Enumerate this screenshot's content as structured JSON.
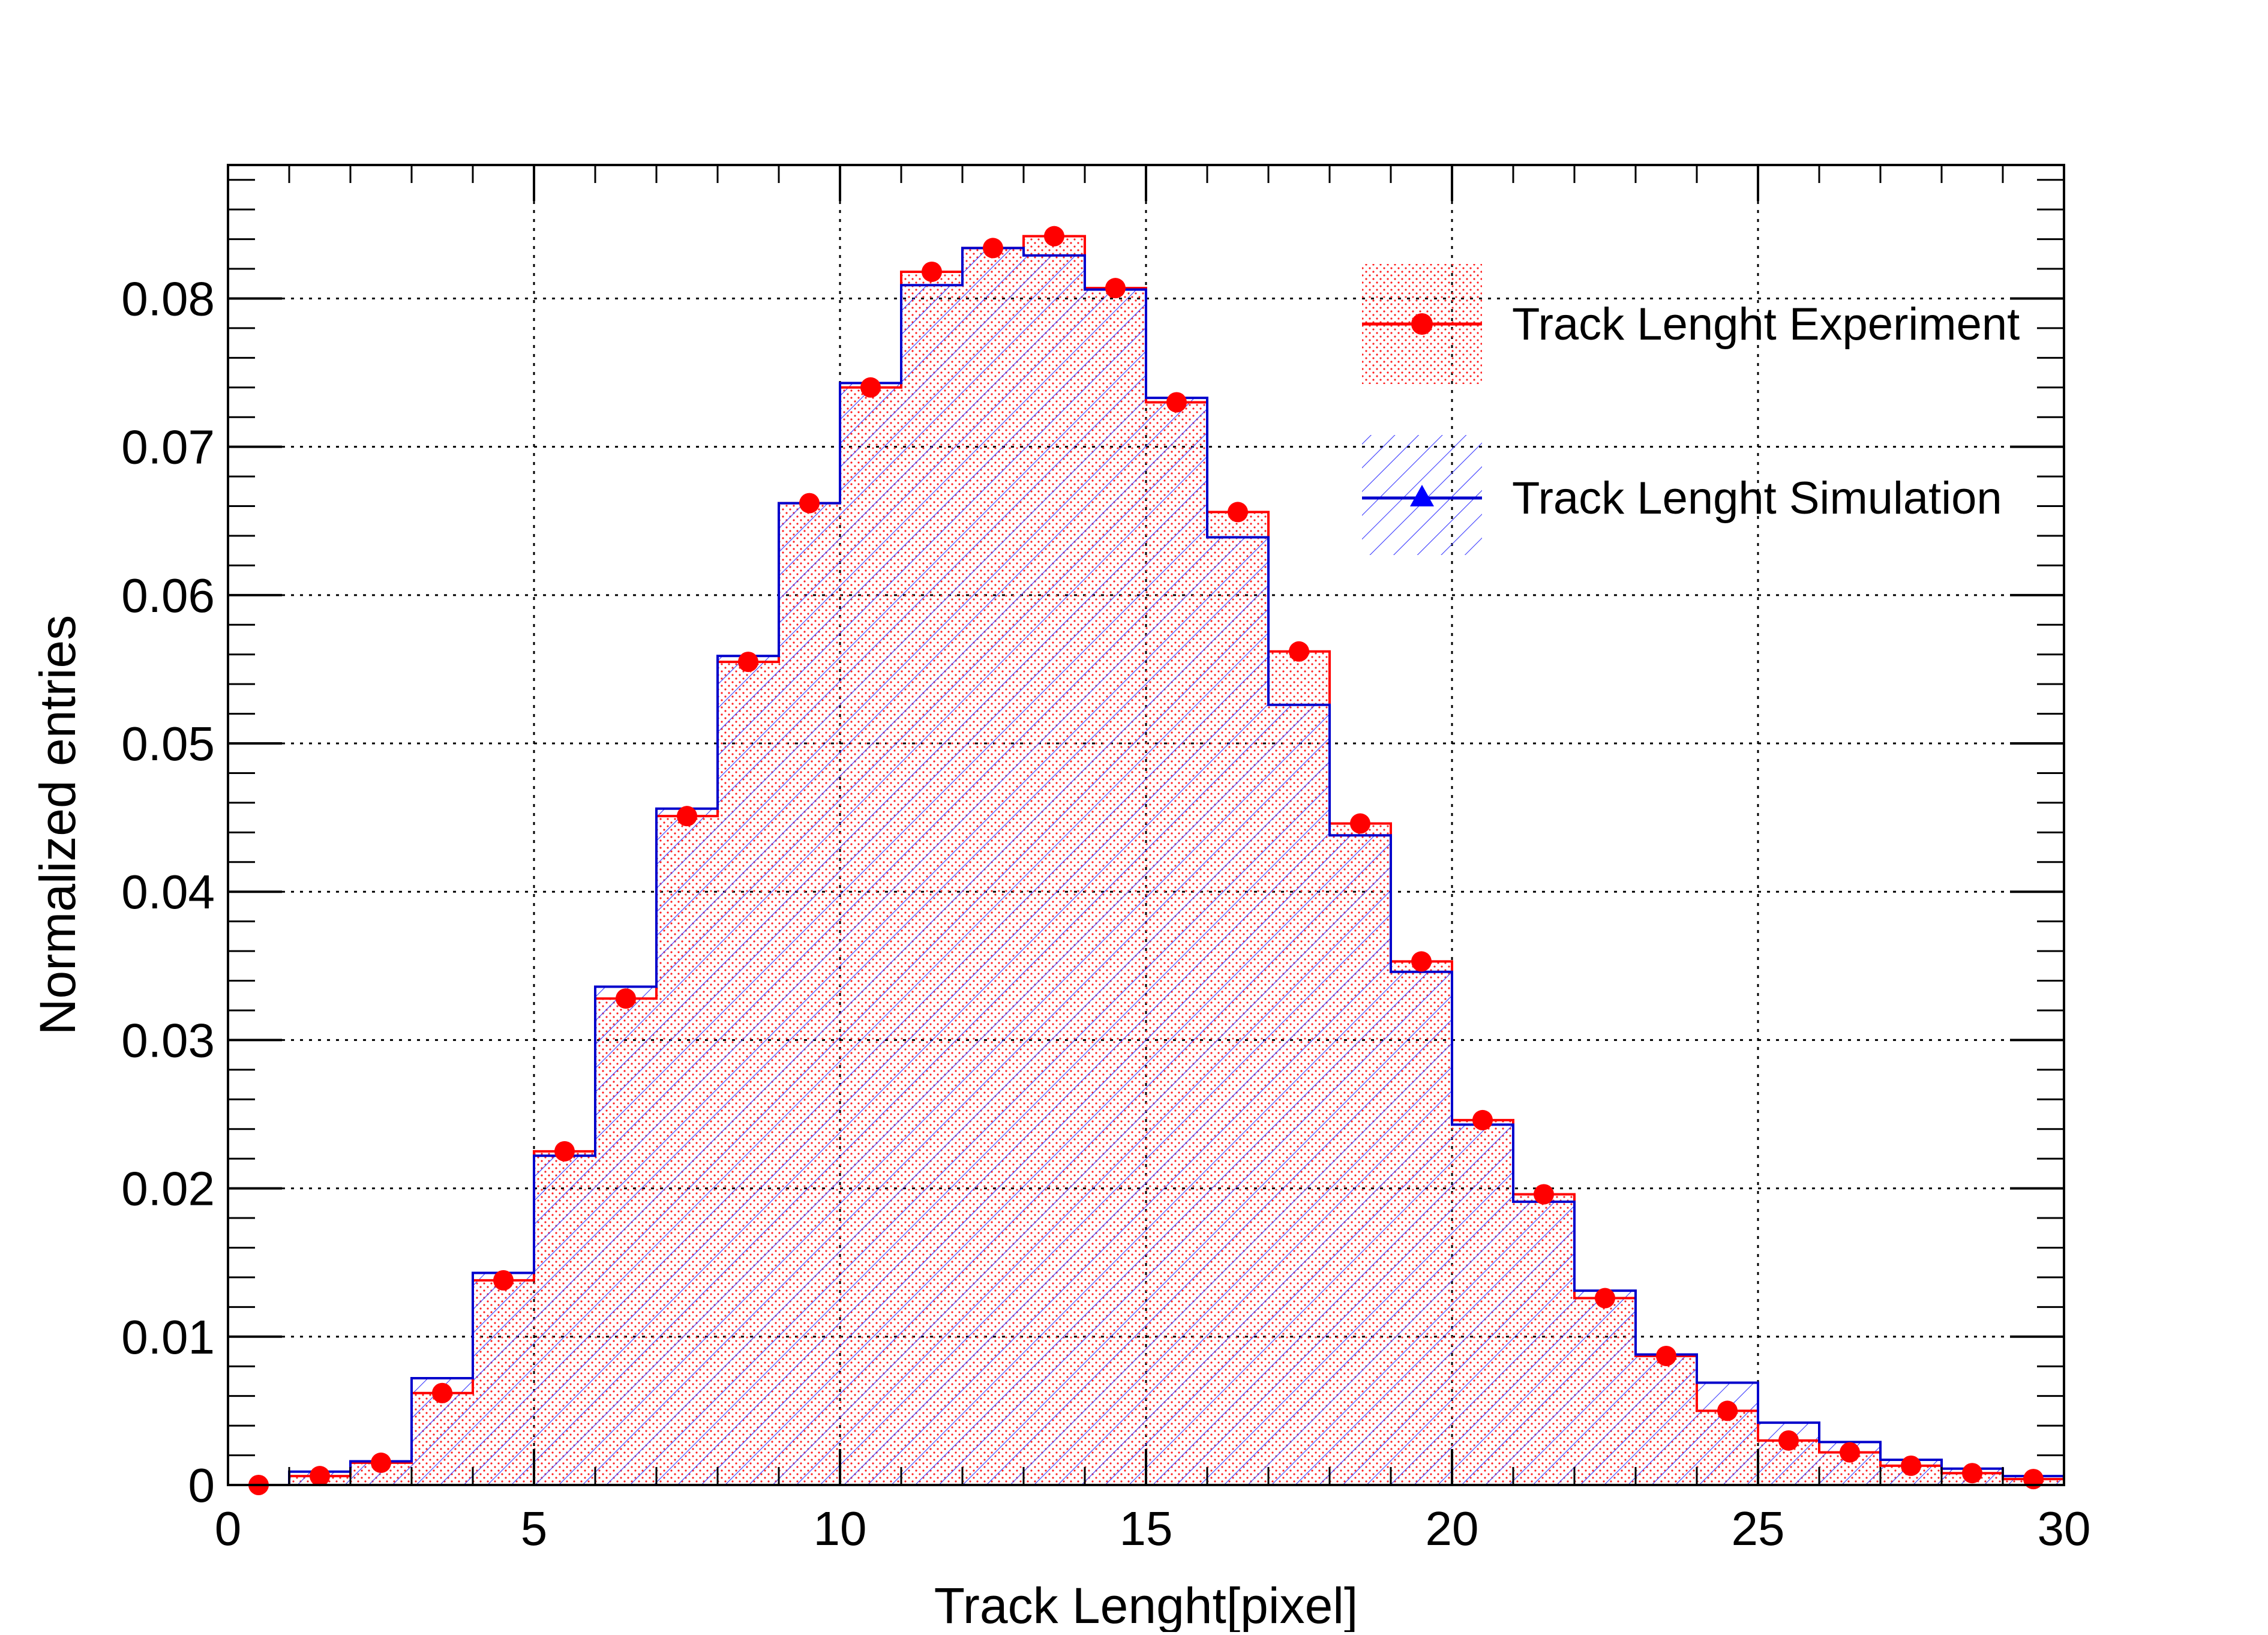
{
  "chart_data": {
    "type": "bar",
    "xlabel": "Track Lenght[pixel]",
    "ylabel": "Normalized entries",
    "xlim": [
      0,
      30
    ],
    "ylim": [
      0,
      0.089
    ],
    "x_ticks": [
      "0",
      "5",
      "10",
      "15",
      "20",
      "25",
      "30"
    ],
    "y_ticks": [
      "0",
      "0.01",
      "0.02",
      "0.03",
      "0.04",
      "0.05",
      "0.06",
      "0.07",
      "0.08"
    ],
    "grid": true,
    "legend_position": "top-right",
    "bin_edges": [
      0,
      1,
      2,
      3,
      4,
      5,
      6,
      7,
      8,
      9,
      10,
      11,
      12,
      13,
      14,
      15,
      16,
      17,
      18,
      19,
      20,
      21,
      22,
      23,
      24,
      25,
      26,
      27,
      28,
      29,
      30
    ],
    "series": [
      {
        "name": "Track Lenght Experiment",
        "style": "histogram with markers, dotted fill",
        "color": "#ff0000",
        "values": [
          0.0,
          0.0006,
          0.0015,
          0.0062,
          0.0138,
          0.0225,
          0.0328,
          0.0451,
          0.0555,
          0.0662,
          0.074,
          0.0818,
          0.0834,
          0.0842,
          0.0807,
          0.073,
          0.0656,
          0.0562,
          0.0446,
          0.0353,
          0.0246,
          0.0196,
          0.0126,
          0.0087,
          0.005,
          0.003,
          0.0022,
          0.0013,
          0.0008,
          0.0004
        ]
      },
      {
        "name": "Track Lenght Simulation",
        "style": "histogram, hatched fill",
        "color": "#0000cc",
        "values": [
          0.0,
          0.0009,
          0.0016,
          0.0072,
          0.0143,
          0.0222,
          0.0336,
          0.0456,
          0.0559,
          0.0662,
          0.0743,
          0.0809,
          0.0834,
          0.0829,
          0.0806,
          0.0733,
          0.0639,
          0.0526,
          0.0438,
          0.0346,
          0.0243,
          0.0191,
          0.0131,
          0.0088,
          0.0069,
          0.0042,
          0.0029,
          0.0017,
          0.0011,
          0.0006
        ]
      }
    ]
  }
}
